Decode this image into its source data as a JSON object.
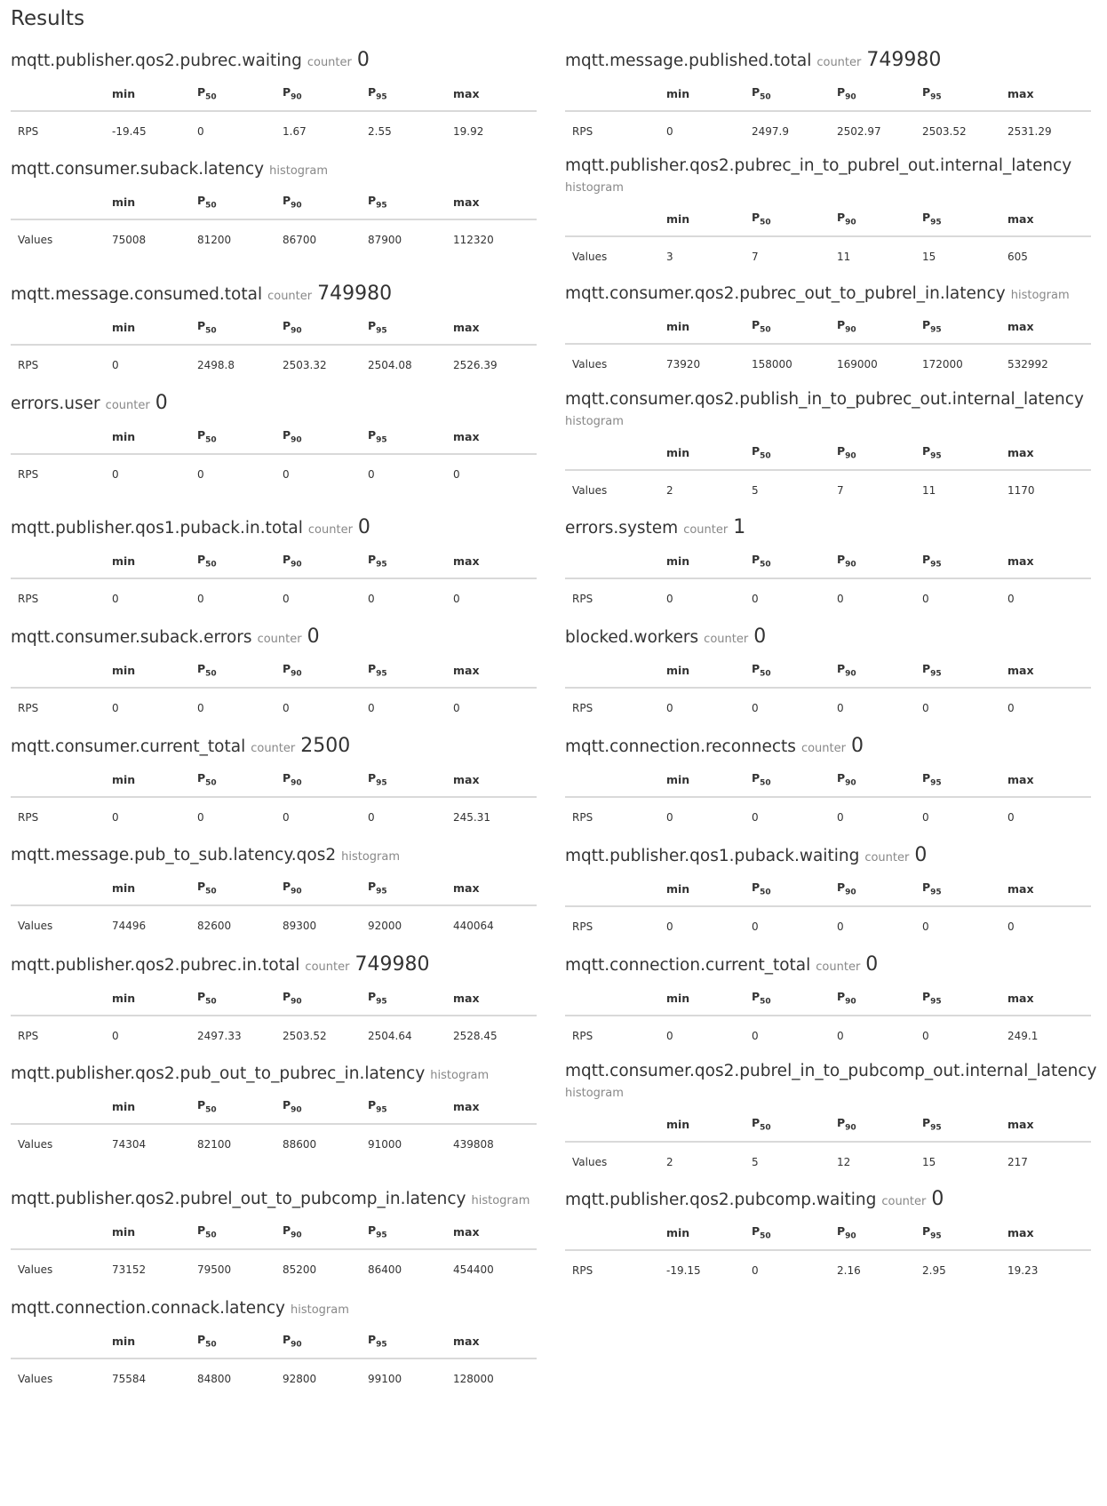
{
  "title": "Results",
  "headers": {
    "row_label": "",
    "min": "min",
    "p50": "P",
    "p50_sub": "50",
    "p90": "P",
    "p90_sub": "90",
    "p95": "P",
    "p95_sub": "95",
    "max": "max"
  },
  "left": [
    {
      "name": "mqtt.publisher.qos2.pubrec.waiting",
      "type": "counter",
      "value": "0",
      "row": "RPS",
      "min": "-19.45",
      "p50": "0",
      "p90": "1.67",
      "p95": "2.55",
      "max": "19.92"
    },
    {
      "name": "mqtt.consumer.suback.latency",
      "type": "histogram",
      "value": "",
      "row": "Values",
      "min": "75008",
      "p50": "81200",
      "p90": "86700",
      "p95": "87900",
      "max": "112320"
    },
    {
      "name": "mqtt.message.consumed.total",
      "type": "counter",
      "value": "749980",
      "row": "RPS",
      "min": "0",
      "p50": "2498.8",
      "p90": "2503.32",
      "p95": "2504.08",
      "max": "2526.39"
    },
    {
      "name": "errors.user",
      "type": "counter",
      "value": "0",
      "row": "RPS",
      "min": "0",
      "p50": "0",
      "p90": "0",
      "p95": "0",
      "max": "0"
    },
    {
      "name": "mqtt.publisher.qos1.puback.in.total",
      "type": "counter",
      "value": "0",
      "row": "RPS",
      "min": "0",
      "p50": "0",
      "p90": "0",
      "p95": "0",
      "max": "0"
    },
    {
      "name": "mqtt.consumer.suback.errors",
      "type": "counter",
      "value": "0",
      "row": "RPS",
      "min": "0",
      "p50": "0",
      "p90": "0",
      "p95": "0",
      "max": "0"
    },
    {
      "name": "mqtt.consumer.current_total",
      "type": "counter",
      "value": "2500",
      "row": "RPS",
      "min": "0",
      "p50": "0",
      "p90": "0",
      "p95": "0",
      "max": "245.31"
    },
    {
      "name": "mqtt.message.pub_to_sub.latency.qos2",
      "type": "histogram",
      "value": "",
      "row": "Values",
      "min": "74496",
      "p50": "82600",
      "p90": "89300",
      "p95": "92000",
      "max": "440064"
    },
    {
      "name": "mqtt.publisher.qos2.pubrec.in.total",
      "type": "counter",
      "value": "749980",
      "row": "RPS",
      "min": "0",
      "p50": "2497.33",
      "p90": "2503.52",
      "p95": "2504.64",
      "max": "2528.45"
    },
    {
      "name": "mqtt.publisher.qos2.pub_out_to_pubrec_in.latency",
      "type": "histogram",
      "value": "",
      "row": "Values",
      "min": "74304",
      "p50": "82100",
      "p90": "88600",
      "p95": "91000",
      "max": "439808"
    },
    {
      "name": "mqtt.publisher.qos2.pubrel_out_to_pubcomp_in.latency",
      "type": "histogram",
      "value": "",
      "row": "Values",
      "min": "73152",
      "p50": "79500",
      "p90": "85200",
      "p95": "86400",
      "max": "454400"
    },
    {
      "name": "mqtt.connection.connack.latency",
      "type": "histogram",
      "value": "",
      "row": "Values",
      "min": "75584",
      "p50": "84800",
      "p90": "92800",
      "p95": "99100",
      "max": "128000"
    }
  ],
  "right": [
    {
      "name": "mqtt.message.published.total",
      "type": "counter",
      "value": "749980",
      "row": "RPS",
      "min": "0",
      "p50": "2497.9",
      "p90": "2502.97",
      "p95": "2503.52",
      "max": "2531.29"
    },
    {
      "name": "mqtt.publisher.qos2.pubrec_in_to_pubrel_out.internal_latency",
      "type": "histogram",
      "value": "",
      "row": "Values",
      "min": "3",
      "p50": "7",
      "p90": "11",
      "p95": "15",
      "max": "605"
    },
    {
      "name": "mqtt.consumer.qos2.pubrec_out_to_pubrel_in.latency",
      "type": "histogram",
      "value": "",
      "row": "Values",
      "min": "73920",
      "p50": "158000",
      "p90": "169000",
      "p95": "172000",
      "max": "532992"
    },
    {
      "name": "mqtt.consumer.qos2.publish_in_to_pubrec_out.internal_latency",
      "type": "histogram",
      "value": "",
      "row": "Values",
      "min": "2",
      "p50": "5",
      "p90": "7",
      "p95": "11",
      "max": "1170"
    },
    {
      "name": "errors.system",
      "type": "counter",
      "value": "1",
      "row": "RPS",
      "min": "0",
      "p50": "0",
      "p90": "0",
      "p95": "0",
      "max": "0"
    },
    {
      "name": "blocked.workers",
      "type": "counter",
      "value": "0",
      "row": "RPS",
      "min": "0",
      "p50": "0",
      "p90": "0",
      "p95": "0",
      "max": "0"
    },
    {
      "name": "mqtt.connection.reconnects",
      "type": "counter",
      "value": "0",
      "row": "RPS",
      "min": "0",
      "p50": "0",
      "p90": "0",
      "p95": "0",
      "max": "0"
    },
    {
      "name": "mqtt.publisher.qos1.puback.waiting",
      "type": "counter",
      "value": "0",
      "row": "RPS",
      "min": "0",
      "p50": "0",
      "p90": "0",
      "p95": "0",
      "max": "0"
    },
    {
      "name": "mqtt.connection.current_total",
      "type": "counter",
      "value": "0",
      "row": "RPS",
      "min": "0",
      "p50": "0",
      "p90": "0",
      "p95": "0",
      "max": "249.1"
    },
    {
      "name": "mqtt.consumer.qos2.pubrel_in_to_pubcomp_out.internal_latency",
      "type": "histogram",
      "value": "",
      "row": "Values",
      "min": "2",
      "p50": "5",
      "p90": "12",
      "p95": "15",
      "max": "217"
    },
    {
      "name": "mqtt.publisher.qos2.pubcomp.waiting",
      "type": "counter",
      "value": "0",
      "row": "RPS",
      "min": "-19.15",
      "p50": "0",
      "p90": "2.16",
      "p95": "2.95",
      "max": "19.23"
    }
  ]
}
